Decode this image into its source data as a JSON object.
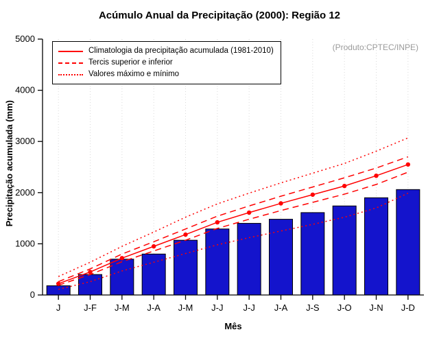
{
  "chart_data": {
    "type": "bar",
    "title": "Acúmulo Anual da Precipitação (2000): Região 12",
    "xlabel": "Mês",
    "ylabel": "Precipitação acumulada (mm)",
    "annotation": "(Produto:CPTEC/INPE)",
    "ylim": [
      0,
      5000
    ],
    "yticks": [
      0,
      1000,
      2000,
      3000,
      4000,
      5000
    ],
    "grid": "vertical-dotted",
    "legend_position": "top-left",
    "categories": [
      "J",
      "J-F",
      "J-M",
      "J-A",
      "J-M",
      "J-J",
      "J-J",
      "J-A",
      "J-S",
      "J-O",
      "J-N",
      "J-D"
    ],
    "bar_color": "#1414cc",
    "line_color": "#ff0000",
    "bars": {
      "name": "Precipitação acumulada (2000)",
      "values": [
        180,
        400,
        700,
        800,
        1070,
        1290,
        1400,
        1480,
        1610,
        1740,
        1900,
        2060
      ]
    },
    "series": [
      {
        "name": "Climatologia da precipitação acumulada (1981-2010)",
        "style": "solid",
        "marker": true,
        "values": [
          220,
          450,
          720,
          950,
          1180,
          1420,
          1610,
          1790,
          1960,
          2130,
          2330,
          2550
        ]
      },
      {
        "name": "Tercil superior",
        "style": "dashed",
        "marker": false,
        "values": [
          260,
          510,
          800,
          1040,
          1290,
          1540,
          1740,
          1930,
          2110,
          2290,
          2480,
          2700
        ]
      },
      {
        "name": "Tercil inferior",
        "style": "dashed",
        "marker": false,
        "values": [
          190,
          400,
          650,
          860,
          1070,
          1300,
          1480,
          1650,
          1810,
          1970,
          2160,
          2400
        ]
      },
      {
        "name": "Valores máximos",
        "style": "dotted",
        "marker": false,
        "values": [
          360,
          640,
          950,
          1230,
          1520,
          1780,
          1990,
          2190,
          2380,
          2570,
          2810,
          3070
        ]
      },
      {
        "name": "Valores mínimos",
        "style": "dotted",
        "marker": false,
        "values": [
          110,
          260,
          470,
          640,
          810,
          980,
          1120,
          1250,
          1380,
          1520,
          1700,
          1990
        ]
      }
    ],
    "legend": [
      {
        "label": "Climatologia da precipitação acumulada (1981-2010)",
        "style": "solid"
      },
      {
        "label": "Tercis superior e inferior",
        "style": "dashed"
      },
      {
        "label": "Valores máximo e mínimo",
        "style": "dotted"
      }
    ]
  }
}
